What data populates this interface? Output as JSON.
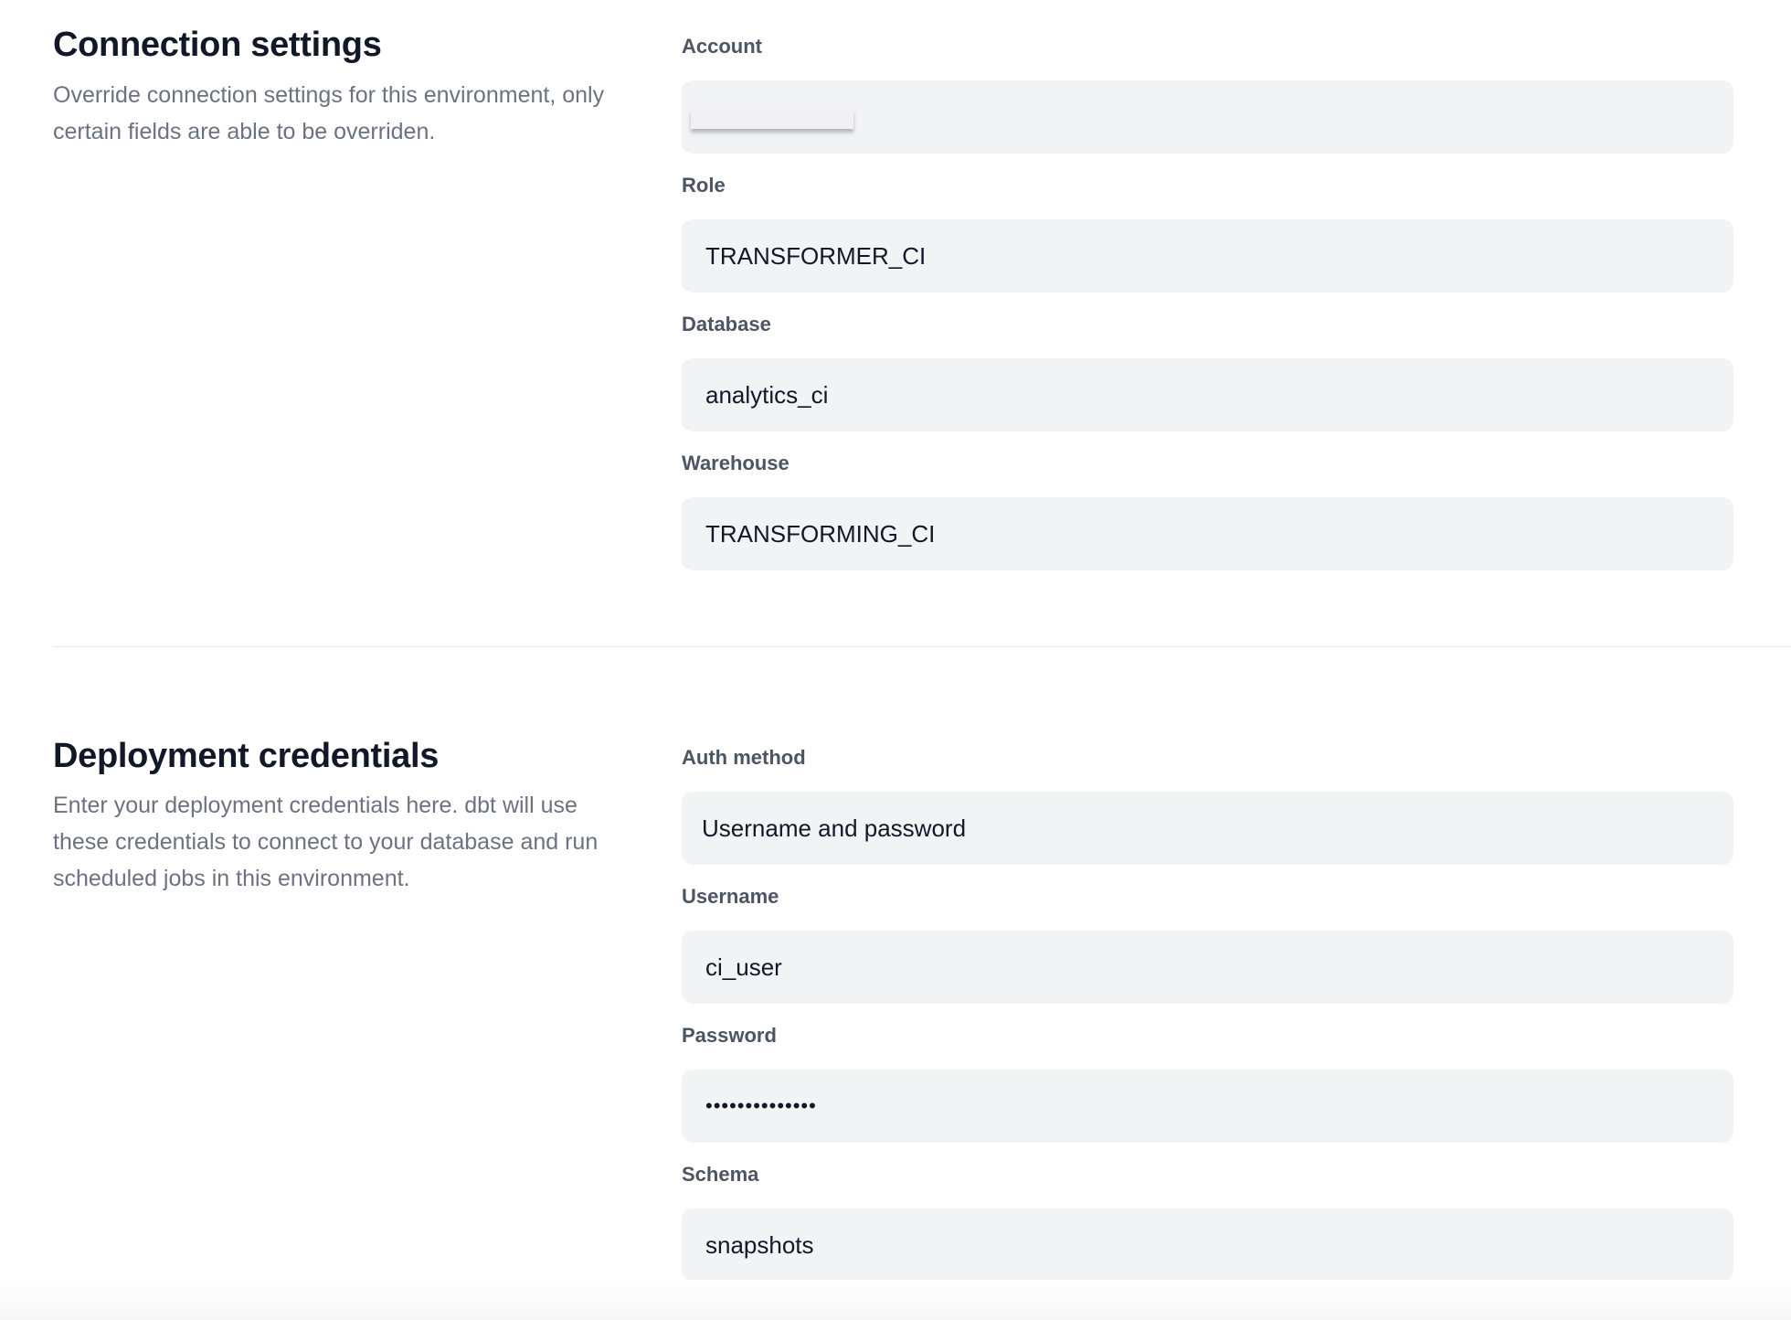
{
  "connection": {
    "title": "Connection settings",
    "description": "Override connection settings for this environment, only certain fields are able to be overriden.",
    "fields": [
      {
        "label": "Account",
        "value": ""
      },
      {
        "label": "Role",
        "value": "TRANSFORMER_CI"
      },
      {
        "label": "Database",
        "value": "analytics_ci"
      },
      {
        "label": "Warehouse",
        "value": "TRANSFORMING_CI"
      }
    ]
  },
  "credentials": {
    "title": "Deployment credentials",
    "description": "Enter your deployment credentials here. dbt will use these credentials to connect to your database and run scheduled jobs in this environment.",
    "fields": [
      {
        "label": "Auth method",
        "value": "Username and password"
      },
      {
        "label": "Username",
        "value": "ci_user"
      },
      {
        "label": "Password",
        "value": "••••••••••••••"
      },
      {
        "label": "Schema",
        "value": "snapshots"
      }
    ]
  }
}
